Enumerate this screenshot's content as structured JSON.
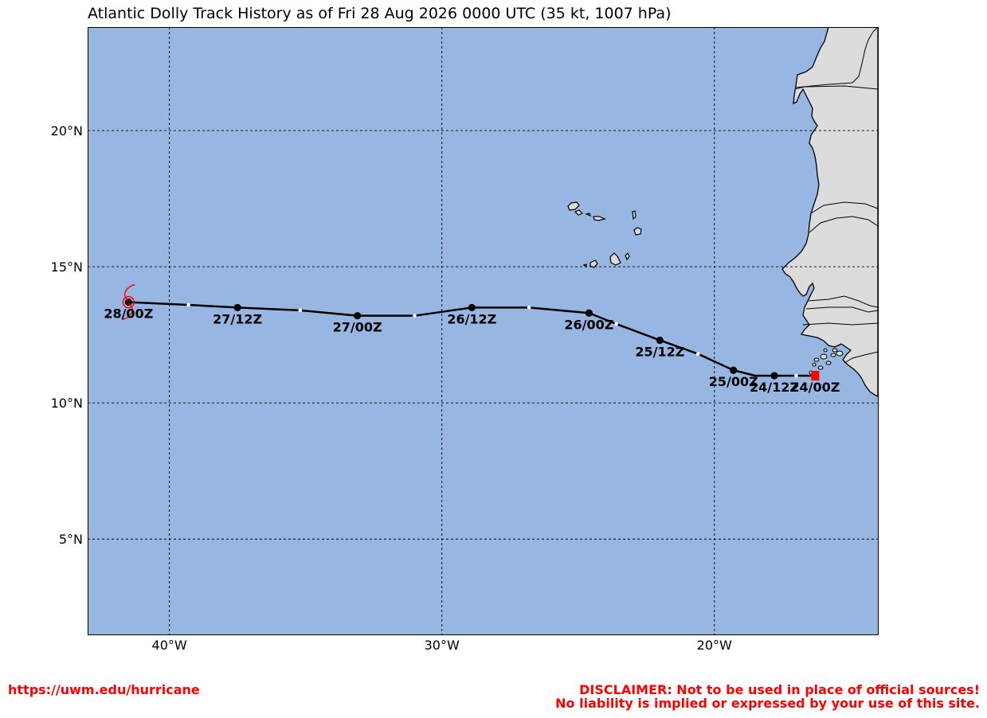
{
  "title": "Atlantic Dolly Track History as of Fri 28 Aug 2026 0000 UTC (35 kt, 1007 hPa)",
  "footer": {
    "url": "https://uwm.edu/hurricane",
    "disclaimer_line1": "DISCLAIMER: Not to be used in place of official sources!",
    "disclaimer_line2": "No liability is implied or expressed by your use of this site."
  },
  "map": {
    "projection": "equirectangular",
    "lon_range": [
      -43,
      -14
    ],
    "lat_range": [
      1.5,
      23.8
    ],
    "ocean_color": "#97b6e1",
    "land_color": "#dcdcdc",
    "gridlines": true,
    "lon_ticks": [
      {
        "value": -40,
        "label": "40°W"
      },
      {
        "value": -30,
        "label": "30°W"
      },
      {
        "value": -20,
        "label": "20°W"
      }
    ],
    "lat_ticks": [
      {
        "value": 20,
        "label": "20°N"
      },
      {
        "value": 15,
        "label": "15°N"
      },
      {
        "value": 10,
        "label": "10°N"
      },
      {
        "value": 5,
        "label": "5°N"
      }
    ]
  },
  "storm": {
    "name": "Dolly",
    "track_color": "#000000",
    "genesis_marker_color": "#ff0000",
    "current_symbol_color": "#ff0000",
    "fixes": [
      {
        "label": "24/00Z",
        "lon": -16.3,
        "lat": 11.0,
        "kind": "start"
      },
      {
        "label": "",
        "lon": -17.0,
        "lat": 11.0,
        "kind": "minor"
      },
      {
        "label": "24/12Z",
        "lon": -17.8,
        "lat": 11.0,
        "kind": "major"
      },
      {
        "label": "",
        "lon": -18.5,
        "lat": 11.0,
        "kind": "none"
      },
      {
        "label": "25/00Z",
        "lon": -19.3,
        "lat": 11.2,
        "kind": "major"
      },
      {
        "label": "",
        "lon": -20.6,
        "lat": 11.8,
        "kind": "minor"
      },
      {
        "label": "25/12Z",
        "lon": -22.0,
        "lat": 12.3,
        "kind": "major"
      },
      {
        "label": "",
        "lon": -23.6,
        "lat": 12.9,
        "kind": "minor"
      },
      {
        "label": "26/00Z",
        "lon": -24.6,
        "lat": 13.3,
        "kind": "major"
      },
      {
        "label": "",
        "lon": -26.8,
        "lat": 13.5,
        "kind": "minor"
      },
      {
        "label": "26/12Z",
        "lon": -28.9,
        "lat": 13.5,
        "kind": "major"
      },
      {
        "label": "",
        "lon": -31.0,
        "lat": 13.2,
        "kind": "minor"
      },
      {
        "label": "27/00Z",
        "lon": -33.1,
        "lat": 13.2,
        "kind": "major"
      },
      {
        "label": "",
        "lon": -35.2,
        "lat": 13.4,
        "kind": "minor"
      },
      {
        "label": "27/12Z",
        "lon": -37.5,
        "lat": 13.5,
        "kind": "major"
      },
      {
        "label": "",
        "lon": -39.3,
        "lat": 13.6,
        "kind": "minor"
      },
      {
        "label": "28/00Z",
        "lon": -41.5,
        "lat": 13.7,
        "kind": "current"
      }
    ]
  }
}
